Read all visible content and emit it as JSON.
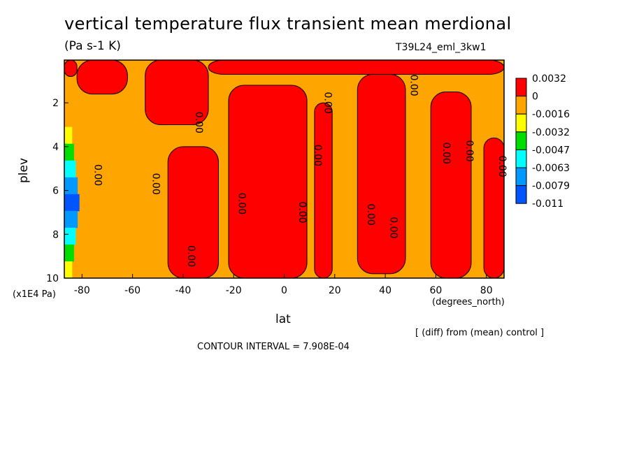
{
  "header": {
    "title": "vertical temperature flux transient mean merdional",
    "units": "(Pa s-1 K)",
    "run": "T39L24_eml_3kw1"
  },
  "footer": {
    "diff": "[ (diff) from (mean) control ]",
    "contour_interval": "CONTOUR INTERVAL = 7.908E-04"
  },
  "chart_data": {
    "type": "heatmap",
    "title": "vertical temperature flux transient mean merdional",
    "subtitle": "(Pa s-1 K)",
    "xlabel": "lat",
    "x_unit": "(degrees_north)",
    "ylabel": "plev",
    "y_unit": "(x1E4 Pa)",
    "xlim": [
      -87,
      87
    ],
    "ylim": [
      10,
      0.05
    ],
    "x_ticks": [
      "-80",
      "-60",
      "-40",
      "-20",
      "0",
      "20",
      "40",
      "60",
      "80"
    ],
    "x_tick_values": [
      -80,
      -60,
      -40,
      -20,
      0,
      20,
      40,
      60,
      80
    ],
    "y_ticks": [
      "2",
      "4",
      "6",
      "8",
      "10"
    ],
    "y_tick_values": [
      2,
      4,
      6,
      8,
      10
    ],
    "contour_labels": [
      "0.00"
    ],
    "colorbar": {
      "labels": [
        "0.0032",
        "0",
        "-0.0016",
        "-0.0032",
        "-0.0047",
        "-0.0063",
        "-0.0079",
        "-0.011"
      ],
      "colors": [
        "#ff0000",
        "#ffa500",
        "#ffff00",
        "#00dd00",
        "#00ffff",
        "#0099ff",
        "#0055ff"
      ]
    },
    "positive_bands": [
      {
        "lat_min": -87,
        "lat_max": -82,
        "p_top": 0.05,
        "p_bottom": 0.8
      },
      {
        "lat_min": -82,
        "lat_max": -62,
        "p_top": 0.05,
        "p_bottom": 1.6
      },
      {
        "lat_min": -55,
        "lat_max": -30,
        "p_top": 0.05,
        "p_bottom": 3.0
      },
      {
        "lat_min": -46,
        "lat_max": -26,
        "p_top": 4.0,
        "p_bottom": 10
      },
      {
        "lat_min": -22,
        "lat_max": 9,
        "p_top": 1.2,
        "p_bottom": 10
      },
      {
        "lat_min": 12,
        "lat_max": 19,
        "p_top": 2.0,
        "p_bottom": 10
      },
      {
        "lat_min": 29,
        "lat_max": 48,
        "p_top": 0.7,
        "p_bottom": 9.8
      },
      {
        "lat_min": 58,
        "lat_max": 74,
        "p_top": 1.5,
        "p_bottom": 10
      },
      {
        "lat_min": 79,
        "lat_max": 87,
        "p_top": 3.6,
        "p_bottom": 10
      },
      {
        "lat_min": -30,
        "lat_max": 87,
        "p_top": 0.05,
        "p_bottom": 0.7
      }
    ],
    "negative_region": {
      "lat_min": -87,
      "lat_max": -81,
      "p_top": 3.1,
      "p_bottom": 10,
      "min_value": -0.011
    }
  }
}
